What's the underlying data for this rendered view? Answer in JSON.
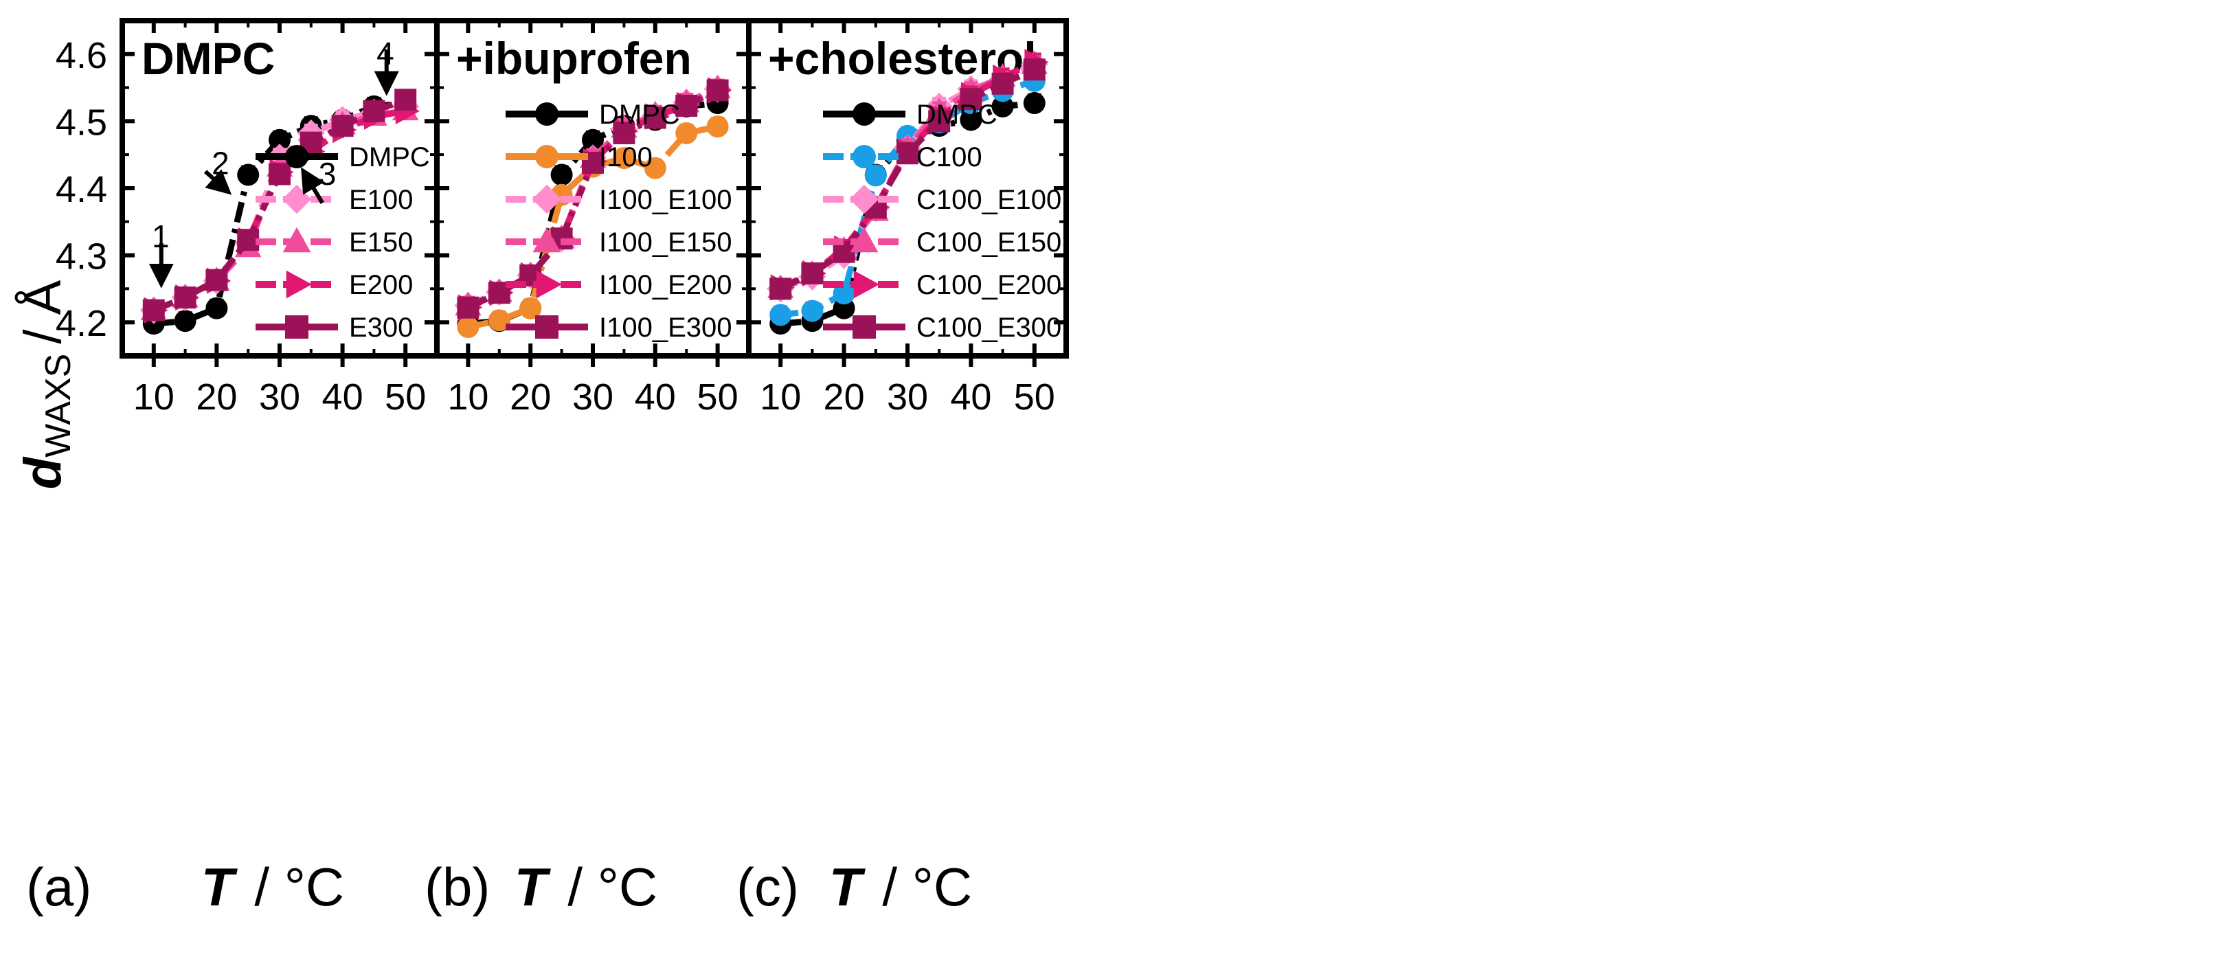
{
  "y_axis": {
    "main": "d",
    "sub": "WAXS",
    "unit": "/ Å"
  },
  "x_axis": {
    "main": "T",
    "unit": "/ °C"
  },
  "panels": [
    {
      "letter": "(a)",
      "title": "DMPC"
    },
    {
      "letter": "(b)",
      "title": "+ibuprofen"
    },
    {
      "letter": "(c)",
      "title": "+cholesterol"
    }
  ],
  "annotations": [
    "1",
    "2",
    "3",
    "4"
  ],
  "chart_data": [
    {
      "type": "line",
      "title": "DMPC",
      "xlabel": "T / °C",
      "ylabel": "dWAXS / Å",
      "xlim": [
        5,
        55
      ],
      "ylim": [
        4.15,
        4.65
      ],
      "xticks": [
        10,
        20,
        30,
        40,
        50
      ],
      "yticks": [
        4.2,
        4.3,
        4.4,
        4.5,
        4.6
      ],
      "legend_position": "bottom-right",
      "x": [
        10,
        15,
        20,
        25,
        30,
        35,
        40,
        45,
        50
      ],
      "series": [
        {
          "name": "DMPC",
          "color": "#000000",
          "marker": "circle",
          "dash": "dashdot",
          "values": [
            4.198,
            4.202,
            4.221,
            4.42,
            4.472,
            4.493,
            4.502,
            4.522,
            4.527
          ]
        },
        {
          "name": "E100",
          "color": "#ff8ccc",
          "marker": "diamond",
          "dash": "dash",
          "values": [
            4.218,
            4.237,
            4.262,
            4.318,
            4.446,
            4.482,
            4.502,
            4.513,
            4.522
          ]
        },
        {
          "name": "E150",
          "color": "#f04c9c",
          "marker": "triangle-up",
          "dash": "dash",
          "values": [
            4.218,
            4.237,
            4.262,
            4.312,
            4.432,
            4.462,
            4.495,
            4.508,
            4.516
          ]
        },
        {
          "name": "E200",
          "color": "#e01872",
          "marker": "triangle-right",
          "dash": "dash",
          "values": [
            4.218,
            4.237,
            4.262,
            4.322,
            4.424,
            4.455,
            4.487,
            4.507,
            4.515
          ]
        },
        {
          "name": "E300",
          "color": "#9c1258",
          "marker": "square",
          "dash": "dashdot",
          "values": [
            4.218,
            4.237,
            4.263,
            4.323,
            4.421,
            4.468,
            4.493,
            4.515,
            4.532
          ]
        }
      ]
    },
    {
      "type": "line",
      "title": "+ibuprofen",
      "xlabel": "T / °C",
      "ylabel": "dWAXS / Å",
      "xlim": [
        5,
        55
      ],
      "ylim": [
        4.15,
        4.65
      ],
      "xticks": [
        10,
        20,
        30,
        40,
        50
      ],
      "yticks": [
        4.2,
        4.3,
        4.4,
        4.5,
        4.6
      ],
      "legend_position": "bottom-right",
      "x": [
        10,
        15,
        20,
        25,
        30,
        35,
        40,
        45,
        50
      ],
      "series": [
        {
          "name": "DMPC",
          "color": "#000000",
          "marker": "circle",
          "dash": "dashdot",
          "values": [
            4.198,
            4.202,
            4.221,
            4.42,
            4.472,
            4.493,
            4.502,
            4.522,
            4.527
          ]
        },
        {
          "name": "I100",
          "color": "#f08a2c",
          "marker": "circle",
          "dash": "dashdot",
          "values": [
            4.193,
            4.203,
            4.221,
            4.39,
            4.432,
            4.445,
            4.43,
            4.482,
            4.492
          ]
        },
        {
          "name": "I100_E100",
          "color": "#ff8ccc",
          "marker": "diamond",
          "dash": "dash",
          "values": [
            4.225,
            4.245,
            4.27,
            4.325,
            4.445,
            4.488,
            4.508,
            4.528,
            4.548
          ]
        },
        {
          "name": "I100_E150",
          "color": "#f04c9c",
          "marker": "triangle-up",
          "dash": "dash",
          "values": [
            4.225,
            4.245,
            4.27,
            4.325,
            4.445,
            4.49,
            4.51,
            4.528,
            4.549
          ]
        },
        {
          "name": "I100_E200",
          "color": "#e01872",
          "marker": "triangle-right",
          "dash": "dash",
          "values": [
            4.222,
            4.244,
            4.27,
            4.324,
            4.44,
            4.485,
            4.507,
            4.524,
            4.546
          ]
        },
        {
          "name": "I100_E300",
          "color": "#9c1258",
          "marker": "square",
          "dash": "dashdot",
          "values": [
            4.222,
            4.244,
            4.27,
            4.325,
            4.438,
            4.482,
            4.505,
            4.523,
            4.546
          ]
        }
      ]
    },
    {
      "type": "line",
      "title": "+cholesterol",
      "xlabel": "T / °C",
      "ylabel": "dWAXS / Å",
      "xlim": [
        5,
        55
      ],
      "ylim": [
        4.15,
        4.65
      ],
      "xticks": [
        10,
        20,
        30,
        40,
        50
      ],
      "yticks": [
        4.2,
        4.3,
        4.4,
        4.5,
        4.6
      ],
      "legend_position": "bottom-right",
      "x": [
        10,
        15,
        20,
        25,
        30,
        35,
        40,
        45,
        50
      ],
      "series": [
        {
          "name": "DMPC",
          "color": "#000000",
          "marker": "circle",
          "dash": "dashdot",
          "values": [
            4.198,
            4.202,
            4.221,
            4.42,
            4.472,
            4.493,
            4.502,
            4.522,
            4.527
          ]
        },
        {
          "name": "C100",
          "color": "#1a9ee6",
          "marker": "circle",
          "dash": "dash",
          "values": [
            4.211,
            4.217,
            4.243,
            4.419,
            4.478,
            4.498,
            4.527,
            4.545,
            4.56
          ]
        },
        {
          "name": "C100_E100",
          "color": "#ff8ccc",
          "marker": "diamond",
          "dash": "dash",
          "values": [
            4.25,
            4.268,
            4.3,
            4.37,
            4.46,
            4.522,
            4.548,
            4.562,
            4.585
          ]
        },
        {
          "name": "C100_E150",
          "color": "#f04c9c",
          "marker": "triangle-up",
          "dash": "dash",
          "values": [
            4.251,
            4.272,
            4.308,
            4.366,
            4.46,
            4.515,
            4.545,
            4.566,
            4.585
          ]
        },
        {
          "name": "C100_E200",
          "color": "#e01872",
          "marker": "triangle-right",
          "dash": "dash",
          "values": [
            4.252,
            4.273,
            4.31,
            4.372,
            4.455,
            4.506,
            4.539,
            4.565,
            4.588
          ]
        },
        {
          "name": "C100_E300",
          "color": "#9c1258",
          "marker": "square",
          "dash": "dashdot",
          "values": [
            4.25,
            4.273,
            4.305,
            4.371,
            4.452,
            4.5,
            4.533,
            4.556,
            4.577
          ]
        }
      ]
    }
  ]
}
